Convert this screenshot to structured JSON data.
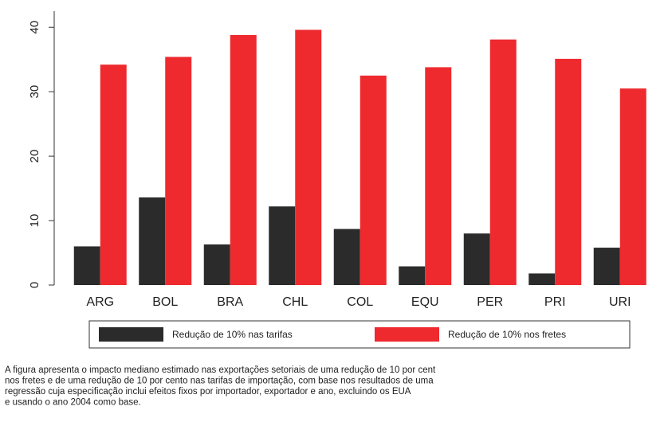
{
  "chart_data": {
    "type": "bar",
    "categories": [
      "ARG",
      "BOL",
      "BRA",
      "CHL",
      "COL",
      "EQU",
      "PER",
      "PRI",
      "URI"
    ],
    "series": [
      {
        "name": "Redução de 10% nas tarifas",
        "color": "#2b2b2b",
        "values": [
          6.0,
          13.6,
          6.3,
          12.2,
          8.7,
          2.9,
          8.0,
          1.8,
          5.8
        ]
      },
      {
        "name": "Redução de 10% nos fretes",
        "color": "#ee2a2e",
        "values": [
          34.2,
          35.4,
          38.8,
          39.6,
          32.5,
          33.8,
          38.1,
          35.1,
          30.5
        ]
      }
    ],
    "ylim": [
      0,
      42.5
    ],
    "yticks": [
      0,
      10,
      20,
      30,
      40
    ],
    "caption": [
      "A figura apresenta o impacto mediano estimado nas exportações setoriais de uma redução de 10 por cent",
      "nos fretes e de uma redução de 10 por cento nas tarifas de importação, com base nos resultados de uma",
      "regressão cuja especificação inclui efeitos fixos por importador, exportador e ano, excluindo os EUA",
      "e usando o ano 2004 como base."
    ]
  }
}
